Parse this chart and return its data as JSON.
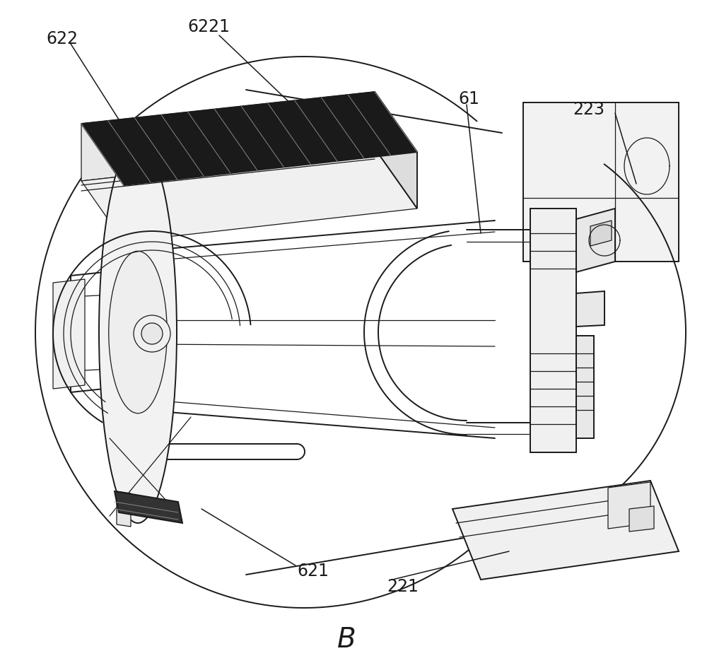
{
  "bg_color": "#ffffff",
  "line_color": "#1a1a1a",
  "figure_label": "B",
  "title_fontsize": 28,
  "label_fontsize": 17
}
